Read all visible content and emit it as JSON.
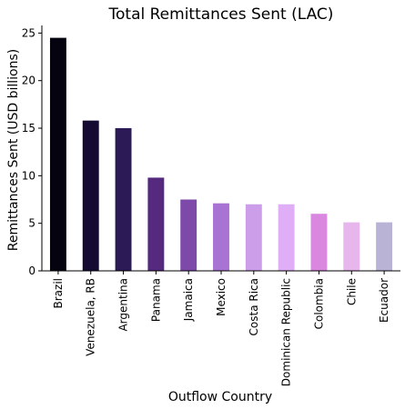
{
  "chart_data": {
    "type": "bar",
    "title": "Total Remittances Sent (LAC)",
    "xlabel": "Outflow Country",
    "ylabel": "Remittances Sent (USD billions)",
    "ylim": [
      0,
      25.8
    ],
    "yticks": [
      0,
      5,
      10,
      15,
      20,
      25
    ],
    "grid": false,
    "categories": [
      "Brazil",
      "Venezuela, RB",
      "Argentina",
      "Panama",
      "Jamaica",
      "Mexico",
      "Costa Rica",
      "Dominican Republic",
      "Colombia",
      "Chile",
      "Ecuador"
    ],
    "values": [
      24.5,
      15.8,
      15.0,
      9.8,
      7.5,
      7.1,
      7.0,
      7.0,
      6.0,
      5.1,
      5.1
    ],
    "colors": [
      "#05030f",
      "#150a32",
      "#2c1a57",
      "#54297e",
      "#7d4aa9",
      "#a873d2",
      "#cc9ee9",
      "#dfaef7",
      "#da87df",
      "#e6b6ec",
      "#b9b3d6"
    ]
  }
}
